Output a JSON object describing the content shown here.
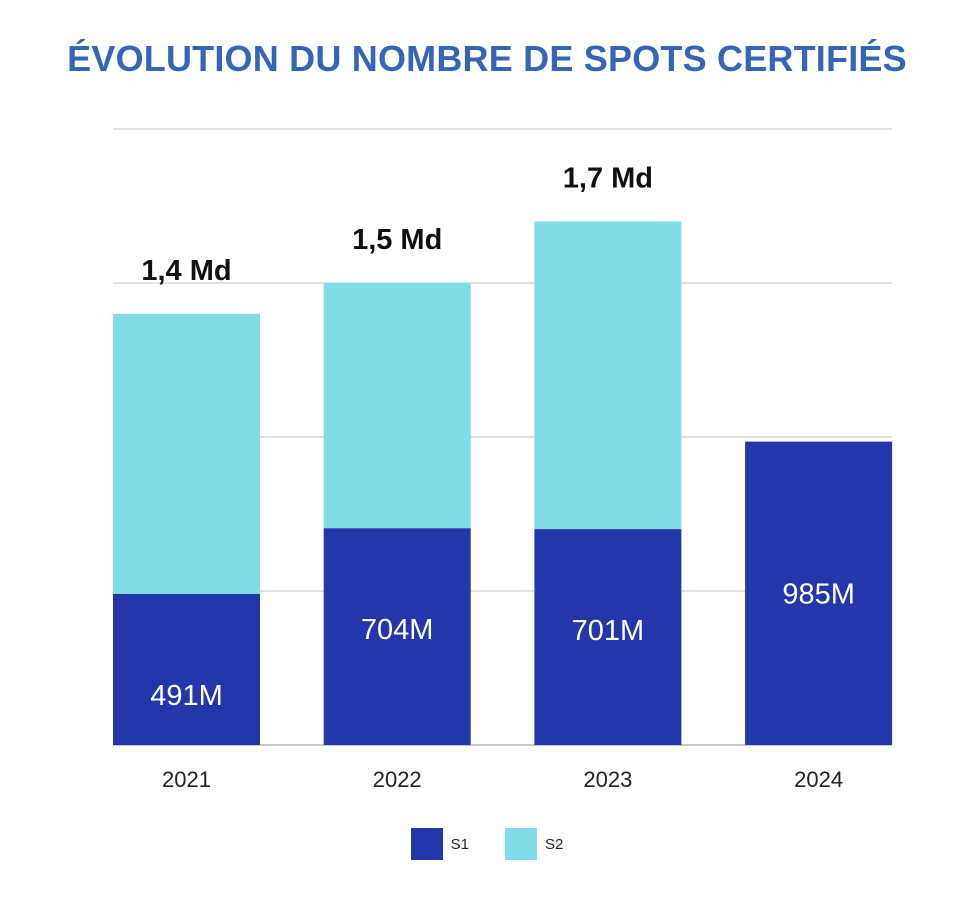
{
  "colors": {
    "title": "#3565b5",
    "s1": "#2337aa",
    "s2": "#80dde5"
  },
  "chart_data": {
    "type": "bar",
    "stacked": true,
    "title": "ÉVOLUTION DU NOMBRE DE SPOTS CERTIFIÉS",
    "categories": [
      "2021",
      "2022",
      "2023",
      "2024"
    ],
    "series": [
      {
        "name": "S1",
        "values": [
          491,
          704,
          701,
          985
        ]
      },
      {
        "name": "S2",
        "values": [
          909,
          796,
          999,
          null
        ]
      }
    ],
    "data_labels": {
      "s1": [
        "491M",
        "704M",
        "701M",
        "985M"
      ],
      "totals": [
        "1,4 Md",
        "1,5 Md",
        "1,7 Md",
        ""
      ]
    },
    "ylim": [
      0,
      2000
    ],
    "grid": true,
    "legend_position": "bottom"
  }
}
